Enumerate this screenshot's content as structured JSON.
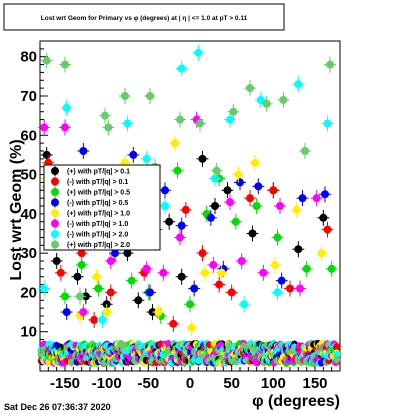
{
  "chart_data": {
    "type": "scatter",
    "title": "Lost wrt Geom for Primary vs φ (degrees) at | η | <= 1.0 at pT > 0.11",
    "xlabel": "φ (degrees)",
    "ylabel": "Lost wrt Geom (%)",
    "xlim": [
      -180,
      180
    ],
    "ylim": [
      0,
      84
    ],
    "xticks": [
      -150,
      -100,
      -50,
      0,
      50,
      100,
      150
    ],
    "xtick_labels": [
      "-150",
      "-100",
      "-50",
      "0",
      "50",
      "100",
      "150"
    ],
    "yticks": [
      10,
      20,
      30,
      40,
      50,
      60,
      70,
      80
    ],
    "ytick_labels": [
      "10",
      "20",
      "30",
      "40",
      "50",
      "60",
      "70",
      "80"
    ],
    "grid": false,
    "legend_position": "left, mid-height",
    "series": [
      {
        "name": "(+) with pT/|q| > 0.1",
        "color": "#000000",
        "x": [
          -172,
          -160,
          -135,
          -125,
          -100,
          -75,
          -62,
          -45,
          -25,
          -10,
          15,
          30,
          45,
          75,
          100,
          130,
          160
        ],
        "y": [
          55,
          28,
          24,
          19,
          17,
          30,
          18,
          15,
          38,
          24,
          54,
          42,
          46,
          35,
          46,
          31,
          39
        ]
      },
      {
        "name": "(-) with pT/|q| > 0.1",
        "color": "#ff0000",
        "x": [
          -170,
          -155,
          -130,
          -115,
          -95,
          -75,
          -55,
          -40,
          -20,
          -5,
          15,
          35,
          50,
          72,
          100,
          120,
          165
        ],
        "y": [
          53,
          25,
          30,
          13,
          20,
          49,
          25,
          36,
          12,
          41,
          30,
          22,
          20,
          44,
          46,
          21,
          36
        ]
      },
      {
        "name": "(+) with pT/|q| > 0.5",
        "color": "#00dd00",
        "x": [
          -170,
          -150,
          -130,
          -110,
          -95,
          -70,
          -50,
          -35,
          -15,
          0,
          20,
          35,
          55,
          80,
          105,
          140,
          170
        ],
        "y": [
          47,
          19,
          27,
          21,
          35,
          23,
          20,
          14,
          51,
          17,
          40,
          49,
          38,
          42,
          34,
          26,
          26
        ]
      },
      {
        "name": "(-) with pT/|q| > 0.5",
        "color": "#0000ff",
        "x": [
          -168,
          -148,
          -128,
          -108,
          -90,
          -68,
          -48,
          -30,
          -10,
          5,
          25,
          40,
          60,
          82,
          110,
          135,
          162
        ],
        "y": [
          45,
          15,
          56,
          39,
          30,
          55,
          20,
          46,
          37,
          21,
          39,
          26,
          48,
          47,
          23,
          44,
          45
        ]
      },
      {
        "name": "(+) with pT/|q| > 1.0",
        "color": "#ffee00",
        "x": [
          -172,
          -152,
          -132,
          -112,
          -100,
          -78,
          -58,
          -38,
          -18,
          2,
          18,
          38,
          58,
          78,
          102,
          128,
          158
        ],
        "y": [
          49,
          46,
          14,
          24,
          15,
          53,
          45,
          15,
          58,
          11,
          25,
          25,
          50,
          53,
          27,
          41,
          30
        ]
      },
      {
        "name": "(-) with pT/|q| > 1.0",
        "color": "#ff00ff",
        "x": [
          -175,
          -150,
          -128,
          -112,
          -95,
          -72,
          -52,
          -32,
          -12,
          8,
          28,
          48,
          62,
          88,
          108,
          132,
          152
        ],
        "y": [
          62,
          62,
          15,
          49,
          28,
          47,
          26,
          25,
          34,
          64,
          27,
          43,
          28,
          25,
          42,
          21,
          44
        ]
      },
      {
        "name": "(-) with pT/|q| > 2.0",
        "color": "#00ffff",
        "x": [
          -175,
          -148,
          -125,
          -105,
          -90,
          -75,
          -52,
          -30,
          -10,
          10,
          30,
          48,
          65,
          85,
          105,
          130,
          165
        ],
        "y": [
          21,
          67,
          38,
          13,
          49,
          63,
          54,
          42,
          77,
          81,
          49,
          64,
          17,
          69,
          20,
          73,
          63
        ]
      },
      {
        "name": "(+) with pT/|q| > 2.0",
        "color": "#66cc66",
        "x": [
          -172,
          -150,
          -132,
          -102,
          -98,
          -78,
          -48,
          -42,
          -12,
          12,
          32,
          52,
          72,
          92,
          112,
          138,
          168
        ],
        "y": [
          79,
          78,
          19,
          65,
          62,
          70,
          70,
          52,
          64,
          63,
          51,
          66,
          72,
          68,
          69,
          56,
          78
        ]
      }
    ],
    "baseline": {
      "y_range": [
        2,
        7
      ],
      "note": "dense cluster of points from all series near the bottom"
    }
  }
}
